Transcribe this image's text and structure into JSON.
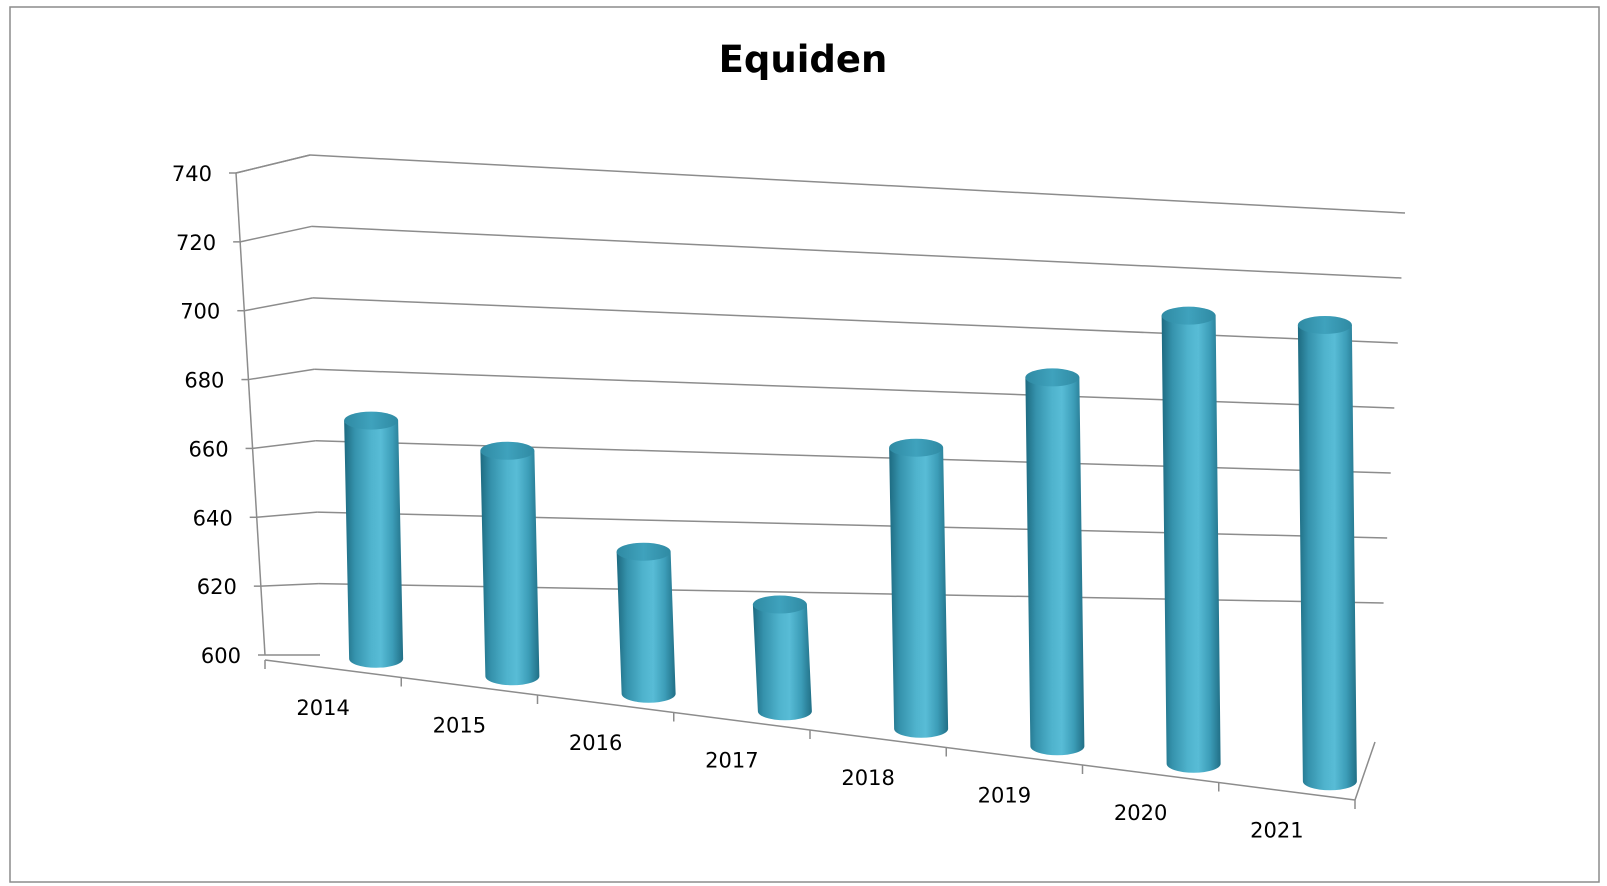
{
  "chart_data": {
    "type": "bar",
    "style": "3d-cylinder",
    "title": "Equiden",
    "xlabel": "",
    "ylabel": "",
    "categories": [
      "2014",
      "2015",
      "2016",
      "2017",
      "2018",
      "2019",
      "2020",
      "2021"
    ],
    "values": [
      674,
      668,
      643,
      632,
      676,
      696,
      713,
      712
    ],
    "ylim": [
      600,
      740
    ],
    "yticks": [
      "600",
      "620",
      "640",
      "660",
      "680",
      "700",
      "720",
      "740"
    ],
    "legend": "none",
    "grid": true,
    "colors": {
      "bar": "#4bacc6",
      "bar_dark": "#1f6f86",
      "bar_top": "#3a9ab4",
      "grid": "#8c8c8c"
    }
  }
}
